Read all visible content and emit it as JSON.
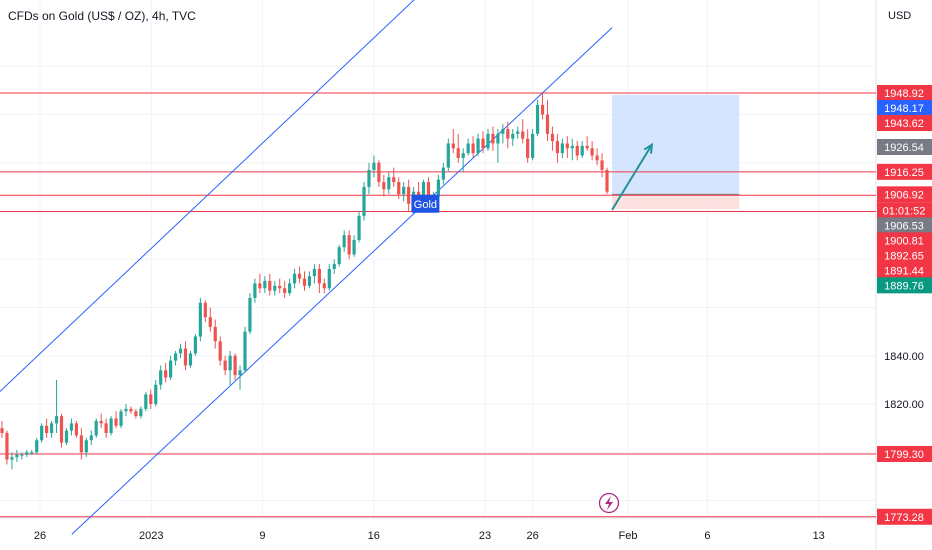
{
  "header": {
    "title": "CFDs on Gold (US$ / OZ), 4h, TVC"
  },
  "axis": {
    "currency": "USD"
  },
  "colors": {
    "up": "#26a69a",
    "down": "#ef5350",
    "channel": "#2962ff",
    "level": "#f23645",
    "arrow": "#22939f",
    "grid": "#f0f3fa",
    "target_zone": "#cfe0fe",
    "stop_zone": "#fcdcdc",
    "entry_line": "#787b86"
  },
  "chart_data": {
    "type": "candlestick",
    "symbol": "Gold",
    "timeframe": "4h",
    "y_ticks": [
      1773.28,
      1799.3,
      1820.0,
      1840.0,
      1889.76,
      1891.44,
      1892.65,
      1900.81,
      1906.53,
      1906.92,
      1916.25,
      1926.54,
      1943.62,
      1948.17,
      1948.92
    ],
    "y_axis_labels": [
      {
        "text": "1948.92",
        "value": 1948.92,
        "style": "red"
      },
      {
        "text": "1948.17",
        "value": 1948.17,
        "style": "blue"
      },
      {
        "text": "1943.62",
        "value": 1943.62,
        "style": "red"
      },
      {
        "text": "1926.54",
        "value": 1926.54,
        "style": "gray"
      },
      {
        "text": "1916.25",
        "value": 1916.25,
        "style": "red"
      },
      {
        "text": "1906.92",
        "value": 1906.92,
        "style": "red"
      },
      {
        "text": "01:01:52",
        "value": 1906.92,
        "style": "countdown"
      },
      {
        "text": "1906.53",
        "value": 1906.53,
        "style": "gray"
      },
      {
        "text": "1900.81",
        "value": 1900.81,
        "style": "red"
      },
      {
        "text": "1892.65",
        "value": 1892.65,
        "style": "red"
      },
      {
        "text": "1891.44",
        "value": 1891.44,
        "style": "red"
      },
      {
        "text": "1889.76",
        "value": 1889.76,
        "style": "green"
      },
      {
        "text": "1840.00",
        "value": 1840.0,
        "style": "plain"
      },
      {
        "text": "1820.00",
        "value": 1820.0,
        "style": "plain"
      },
      {
        "text": "1799.30",
        "value": 1799.3,
        "style": "red"
      },
      {
        "text": "1773.28",
        "value": 1773.28,
        "style": "red"
      }
    ],
    "x_ticks": [
      {
        "label": "26",
        "date": "2022-12-26"
      },
      {
        "label": "2023",
        "date": "2023-01-02"
      },
      {
        "label": "9",
        "date": "2023-01-09"
      },
      {
        "label": "16",
        "date": "2023-01-16"
      },
      {
        "label": "23",
        "date": "2023-01-23"
      },
      {
        "label": "26",
        "date": "2023-01-26"
      },
      {
        "label": "Feb",
        "date": "2023-02-01"
      },
      {
        "label": "6",
        "date": "2023-02-06"
      },
      {
        "label": "13",
        "date": "2023-02-13"
      }
    ],
    "horizontal_levels": [
      1948.92,
      1916.25,
      1906.53,
      1899.8,
      1799.3,
      1773.28
    ],
    "channel": {
      "upper": [
        {
          "date": "2022-12-22",
          "price": 1816
        },
        {
          "date": "2023-01-26",
          "price": 2034
        }
      ],
      "lower": [
        {
          "date": "2022-12-28",
          "price": 1766
        },
        {
          "date": "2023-01-31",
          "price": 1976
        }
      ]
    },
    "position": {
      "entry": 1906.92,
      "target": 1948.17,
      "stop": 1900.81,
      "start": "2023-01-31",
      "end": "2023-02-08"
    },
    "arrow": {
      "from": {
        "date": "2023-01-31",
        "price": 1900.5
      },
      "to": {
        "date": "2023-02-02",
        "price": 1927.5
      }
    },
    "label_box": {
      "text": "Gold",
      "date": "2023-01-19",
      "price": 1903.0
    },
    "candles": [
      [
        1810,
        1813,
        1806,
        1808
      ],
      [
        1808,
        1809,
        1795,
        1797
      ],
      [
        1797,
        1800,
        1793,
        1798
      ],
      [
        1798,
        1801,
        1796,
        1799
      ],
      [
        1799,
        1800,
        1797,
        1799
      ],
      [
        1799,
        1801,
        1798,
        1800
      ],
      [
        1800,
        1801,
        1799,
        1800
      ],
      [
        1800,
        1806,
        1799,
        1805
      ],
      [
        1805,
        1812,
        1804,
        1811
      ],
      [
        1811,
        1814,
        1806,
        1808
      ],
      [
        1808,
        1813,
        1806,
        1812
      ],
      [
        1812,
        1830,
        1808,
        1815
      ],
      [
        1815,
        1816,
        1802,
        1804
      ],
      [
        1804,
        1810,
        1803,
        1809
      ],
      [
        1809,
        1814,
        1807,
        1812
      ],
      [
        1812,
        1813,
        1806,
        1807
      ],
      [
        1807,
        1810,
        1797,
        1800
      ],
      [
        1800,
        1806,
        1798,
        1805
      ],
      [
        1805,
        1809,
        1803,
        1807
      ],
      [
        1807,
        1814,
        1806,
        1813
      ],
      [
        1813,
        1816,
        1810,
        1812
      ],
      [
        1812,
        1814,
        1806,
        1808
      ],
      [
        1808,
        1815,
        1807,
        1814
      ],
      [
        1814,
        1817,
        1810,
        1811
      ],
      [
        1811,
        1818,
        1810,
        1817
      ],
      [
        1817,
        1820,
        1815,
        1818
      ],
      [
        1818,
        1819,
        1816,
        1817
      ],
      [
        1817,
        1818,
        1814,
        1815
      ],
      [
        1815,
        1819,
        1814,
        1818
      ],
      [
        1818,
        1825,
        1817,
        1824
      ],
      [
        1824,
        1826,
        1818,
        1820
      ],
      [
        1820,
        1830,
        1819,
        1828
      ],
      [
        1828,
        1836,
        1826,
        1834
      ],
      [
        1834,
        1837,
        1829,
        1831
      ],
      [
        1831,
        1840,
        1830,
        1838
      ],
      [
        1838,
        1842,
        1836,
        1841
      ],
      [
        1841,
        1845,
        1839,
        1843
      ],
      [
        1843,
        1846,
        1834,
        1836
      ],
      [
        1836,
        1842,
        1835,
        1841
      ],
      [
        1841,
        1849,
        1840,
        1848
      ],
      [
        1848,
        1864,
        1846,
        1862
      ],
      [
        1862,
        1863,
        1854,
        1856
      ],
      [
        1856,
        1860,
        1850,
        1852
      ],
      [
        1852,
        1855,
        1843,
        1846
      ],
      [
        1846,
        1848,
        1836,
        1838
      ],
      [
        1838,
        1840,
        1832,
        1834
      ],
      [
        1834,
        1842,
        1828,
        1840
      ],
      [
        1840,
        1841,
        1830,
        1832
      ],
      [
        1832,
        1836,
        1826,
        1834
      ],
      [
        1834,
        1852,
        1833,
        1850
      ],
      [
        1850,
        1866,
        1849,
        1864
      ],
      [
        1864,
        1872,
        1862,
        1870
      ],
      [
        1870,
        1874,
        1866,
        1868
      ],
      [
        1868,
        1873,
        1866,
        1871
      ],
      [
        1871,
        1874,
        1865,
        1867
      ],
      [
        1867,
        1871,
        1865,
        1869
      ],
      [
        1869,
        1872,
        1866,
        1868
      ],
      [
        1868,
        1871,
        1864,
        1866
      ],
      [
        1866,
        1872,
        1865,
        1870
      ],
      [
        1870,
        1876,
        1868,
        1874
      ],
      [
        1874,
        1877,
        1870,
        1872
      ],
      [
        1872,
        1875,
        1867,
        1869
      ],
      [
        1869,
        1875,
        1868,
        1873
      ],
      [
        1873,
        1878,
        1870,
        1876
      ],
      [
        1876,
        1878,
        1866,
        1870
      ],
      [
        1870,
        1872,
        1866,
        1868
      ],
      [
        1868,
        1878,
        1867,
        1876
      ],
      [
        1876,
        1880,
        1874,
        1878
      ],
      [
        1878,
        1886,
        1877,
        1885
      ],
      [
        1885,
        1892,
        1883,
        1890
      ],
      [
        1890,
        1892,
        1880,
        1882
      ],
      [
        1882,
        1890,
        1881,
        1888
      ],
      [
        1888,
        1900,
        1887,
        1898
      ],
      [
        1898,
        1912,
        1896,
        1910
      ],
      [
        1910,
        1920,
        1907,
        1917
      ],
      [
        1917,
        1923,
        1914,
        1920
      ],
      [
        1920,
        1921,
        1910,
        1912
      ],
      [
        1912,
        1915,
        1906,
        1909
      ],
      [
        1909,
        1916,
        1907,
        1914
      ],
      [
        1914,
        1918,
        1910,
        1912
      ],
      [
        1912,
        1914,
        1905,
        1907
      ],
      [
        1907,
        1912,
        1904,
        1910
      ],
      [
        1910,
        1913,
        1900,
        1903
      ],
      [
        1903,
        1910,
        1900,
        1908
      ],
      [
        1908,
        1912,
        1905,
        1906
      ],
      [
        1906,
        1913,
        1905,
        1912
      ],
      [
        1912,
        1914,
        1902,
        1905
      ],
      [
        1905,
        1908,
        1902,
        1906
      ],
      [
        1906,
        1915,
        1905,
        1913
      ],
      [
        1913,
        1920,
        1911,
        1918
      ],
      [
        1918,
        1930,
        1916,
        1928
      ],
      [
        1928,
        1934,
        1924,
        1926
      ],
      [
        1926,
        1932,
        1920,
        1922
      ],
      [
        1922,
        1926,
        1916,
        1924
      ],
      [
        1924,
        1930,
        1923,
        1928
      ],
      [
        1928,
        1931,
        1922,
        1924
      ],
      [
        1924,
        1932,
        1923,
        1930
      ],
      [
        1930,
        1933,
        1924,
        1926
      ],
      [
        1926,
        1934,
        1925,
        1932
      ],
      [
        1932,
        1935,
        1925,
        1928
      ],
      [
        1928,
        1934,
        1920,
        1932
      ],
      [
        1932,
        1936,
        1928,
        1934
      ],
      [
        1934,
        1937,
        1926,
        1930
      ],
      [
        1930,
        1934,
        1927,
        1932
      ],
      [
        1932,
        1935,
        1930,
        1933
      ],
      [
        1933,
        1938,
        1928,
        1930
      ],
      [
        1930,
        1934,
        1920,
        1922
      ],
      [
        1922,
        1934,
        1921,
        1932
      ],
      [
        1932,
        1946,
        1931,
        1944
      ],
      [
        1944,
        1949,
        1938,
        1940
      ],
      [
        1940,
        1946,
        1929,
        1932
      ],
      [
        1932,
        1935,
        1925,
        1929
      ],
      [
        1929,
        1932,
        1920,
        1924
      ],
      [
        1924,
        1930,
        1922,
        1928
      ],
      [
        1928,
        1931,
        1922,
        1926
      ],
      [
        1926,
        1930,
        1921,
        1927
      ],
      [
        1927,
        1929,
        1921,
        1923
      ],
      [
        1923,
        1929,
        1922,
        1927
      ],
      [
        1927,
        1931,
        1925,
        1926
      ],
      [
        1926,
        1929,
        1921,
        1923
      ],
      [
        1923,
        1926,
        1919,
        1921
      ],
      [
        1921,
        1924,
        1914,
        1917
      ],
      [
        1917,
        1918,
        1907,
        1908
      ]
    ]
  }
}
